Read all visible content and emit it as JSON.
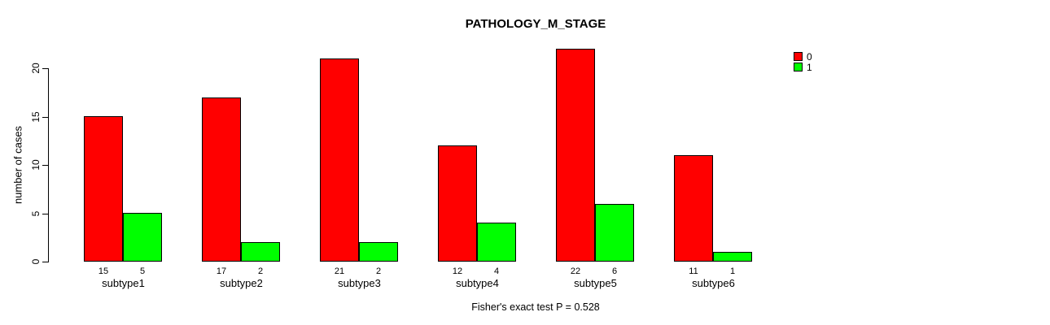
{
  "chart_data": {
    "type": "bar",
    "title": "PATHOLOGY_M_STAGE",
    "ylabel": "number of cases",
    "xlabel": "",
    "categories": [
      "subtype1",
      "subtype2",
      "subtype3",
      "subtype4",
      "subtype5",
      "subtype6"
    ],
    "series": [
      {
        "name": "0",
        "color": "#ff0000",
        "values": [
          15,
          17,
          21,
          12,
          22,
          11
        ]
      },
      {
        "name": "1",
        "color": "#00ff00",
        "values": [
          5,
          2,
          2,
          4,
          6,
          1
        ]
      }
    ],
    "yticks": [
      0,
      5,
      10,
      15,
      20
    ],
    "ylim": [
      0,
      22
    ],
    "grid": false,
    "bar_value_labels_shown": true,
    "legend": {
      "position": "top-right",
      "entries": [
        {
          "label": "0",
          "color": "#ff0000"
        },
        {
          "label": "1",
          "color": "#00ff00"
        }
      ]
    },
    "annotation": "Fisher's exact test P = 0.528"
  }
}
